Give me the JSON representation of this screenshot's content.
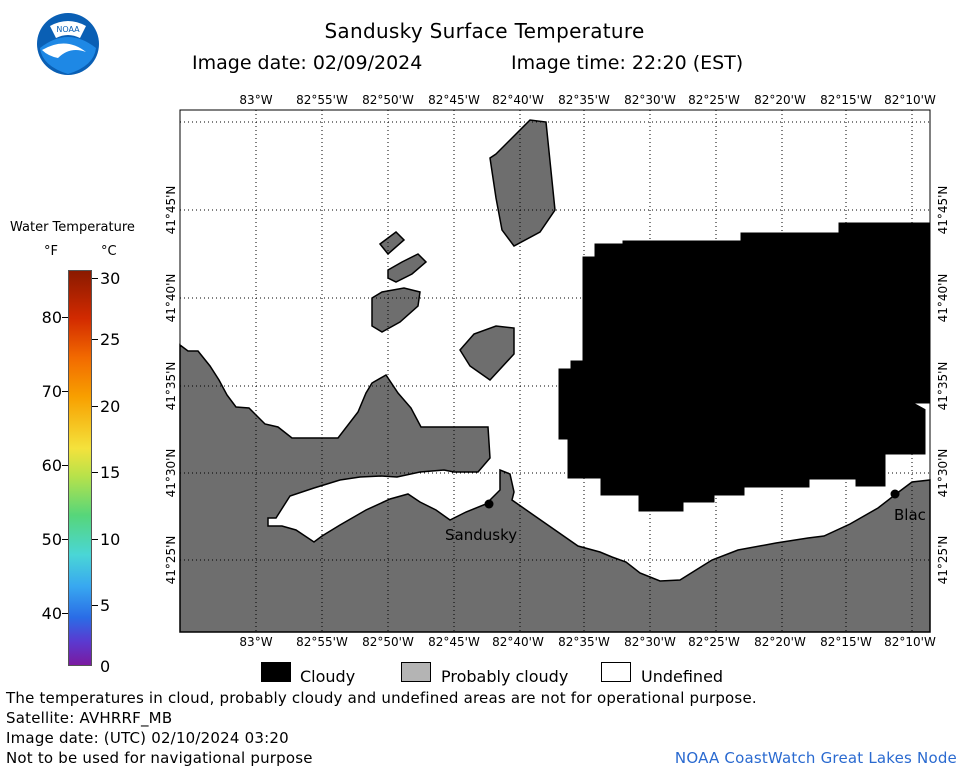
{
  "header": {
    "title": "Sandusky Surface Temperature",
    "image_date": "Image date: 02/09/2024",
    "image_time": "Image time: 22:20 (EST)",
    "logo_text": "NOAA"
  },
  "map": {
    "lon_labels": [
      "83°W",
      "82°55'W",
      "82°50'W",
      "82°45'W",
      "82°40'W",
      "82°35'W",
      "82°30'W",
      "82°25'W",
      "82°20'W",
      "82°15'W",
      "82°10'W"
    ],
    "lat_labels": [
      "41°45'N",
      "41°40'N",
      "41°35'N",
      "41°30'N",
      "41°25'N"
    ],
    "cities": [
      {
        "name": "Sandusky"
      },
      {
        "name": "Blac"
      }
    ],
    "colors": {
      "land": "#6e6e6e",
      "cloudy": "#000000",
      "water": "#ffffff"
    }
  },
  "colorbar": {
    "title": "Water Temperature",
    "unit_f": "°F",
    "unit_c": "°C",
    "f_ticks": [
      "80",
      "70",
      "60",
      "50",
      "40"
    ],
    "c_ticks": [
      "30",
      "25",
      "20",
      "15",
      "10",
      "5",
      "0"
    ]
  },
  "legend": {
    "cloudy": "Cloudy",
    "probably_cloudy": "Probably cloudy",
    "undefined": "Undefined",
    "colors": {
      "cloudy": "#000000",
      "probably_cloudy": "#b4b4b4",
      "undefined": "#ffffff"
    }
  },
  "footer": {
    "disclaimer": "The temperatures in cloud, probably cloudy and undefined areas are not for operational purpose.",
    "satellite": "Satellite: AVHRRF_MB",
    "utc_date": "Image date: (UTC) 02/10/2024  03:20",
    "nav_warning": "Not to be used for navigational purpose",
    "credit": "NOAA CoastWatch Great Lakes Node"
  }
}
